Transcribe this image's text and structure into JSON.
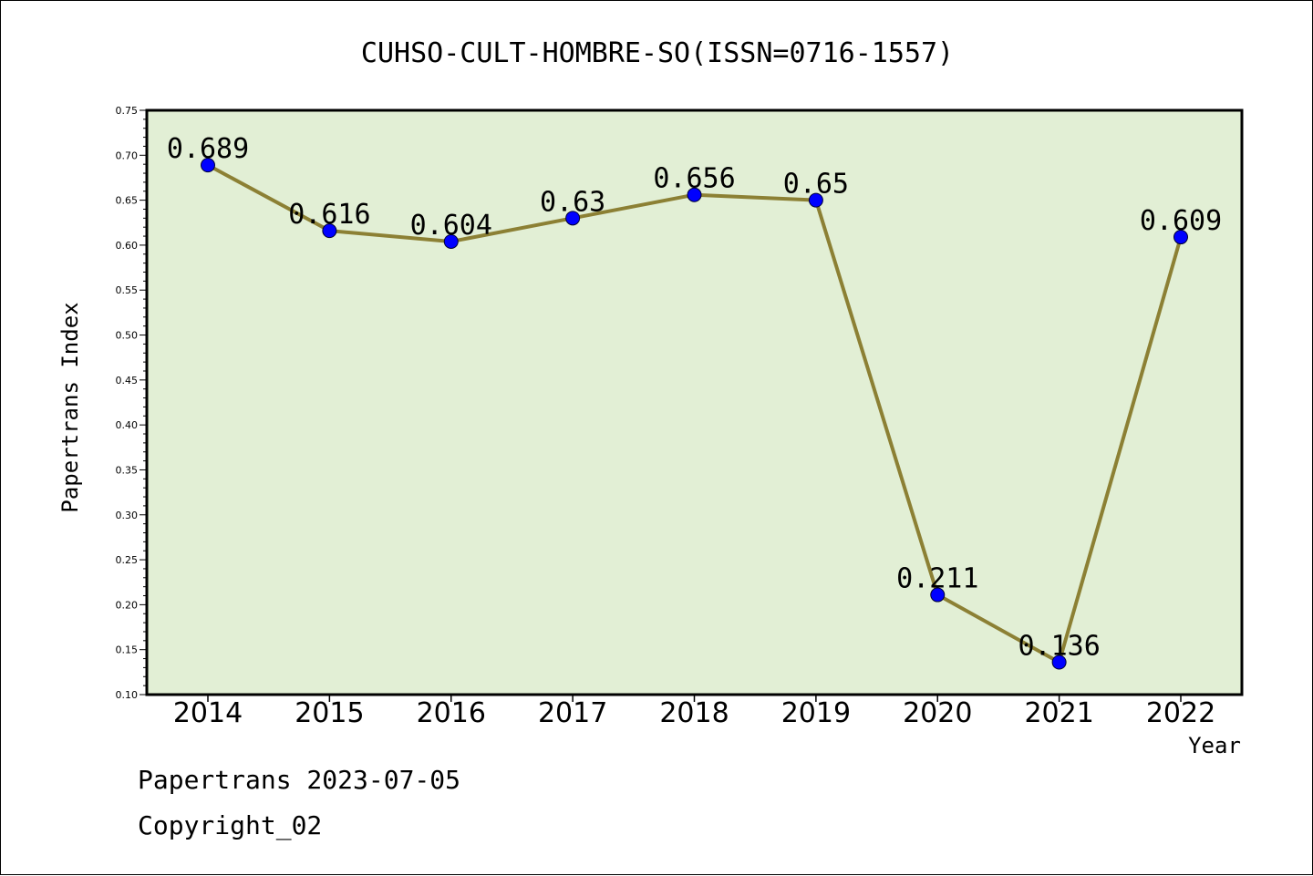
{
  "chart_data": {
    "type": "line",
    "title": "CUHSO-CULT-HOMBRE-SO(ISSN=0716-1557)",
    "xlabel": "Year",
    "ylabel": "Papertrans Index",
    "categories": [
      "2014",
      "2015",
      "2016",
      "2017",
      "2018",
      "2019",
      "2020",
      "2021",
      "2022"
    ],
    "series": [
      {
        "values": [
          0.689,
          0.616,
          0.604,
          0.63,
          0.656,
          0.65,
          0.211,
          0.136,
          0.609
        ],
        "labels": [
          "0.689",
          "0.616",
          "0.604",
          "0.63",
          "0.656",
          "0.65",
          "0.211",
          "0.136",
          "0.609"
        ]
      }
    ],
    "ylim": [
      0.1,
      0.75
    ],
    "yticks": [
      "0.10",
      "0.15",
      "0.20",
      "0.25",
      "0.30",
      "0.35",
      "0.40",
      "0.45",
      "0.50",
      "0.55",
      "0.60",
      "0.65",
      "0.70",
      "0.75"
    ],
    "grid": false,
    "colors": {
      "plot_bg": "#e2efd5",
      "line": "#8c8034",
      "marker": "#0000ff"
    }
  },
  "footer": {
    "source": "Papertrans 2023-07-05",
    "copyright": "Copyright_02"
  }
}
